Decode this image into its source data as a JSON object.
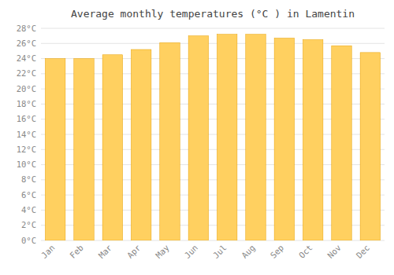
{
  "chart_data": {
    "type": "bar",
    "title": "Average monthly temperatures (°C ) in Lamentin",
    "categories": [
      "Jan",
      "Feb",
      "Mar",
      "Apr",
      "May",
      "Jun",
      "Jul",
      "Aug",
      "Sep",
      "Oct",
      "Nov",
      "Dec"
    ],
    "values": [
      24.0,
      24.0,
      24.5,
      25.2,
      26.1,
      27.0,
      27.2,
      27.2,
      26.7,
      26.5,
      25.7,
      24.8
    ],
    "color": "#FFD060",
    "ylim": [
      0,
      28
    ],
    "yticks": [
      {
        "value": 0,
        "label": "0°C"
      },
      {
        "value": 2,
        "label": "2°C"
      },
      {
        "value": 4,
        "label": "4°C"
      },
      {
        "value": 6,
        "label": "6°C"
      },
      {
        "value": 8,
        "label": "8°C"
      },
      {
        "value": 10,
        "label": "10°C"
      },
      {
        "value": 12,
        "label": "12°C"
      },
      {
        "value": 14,
        "label": "14°C"
      },
      {
        "value": 16,
        "label": "16°C"
      },
      {
        "value": 18,
        "label": "18°C"
      },
      {
        "value": 20,
        "label": "20°C"
      },
      {
        "value": 22,
        "label": "22°C"
      },
      {
        "value": 24,
        "label": "24°C"
      },
      {
        "value": 26,
        "label": "26°C"
      },
      {
        "value": 28,
        "label": "28°C"
      }
    ],
    "grid": true
  }
}
